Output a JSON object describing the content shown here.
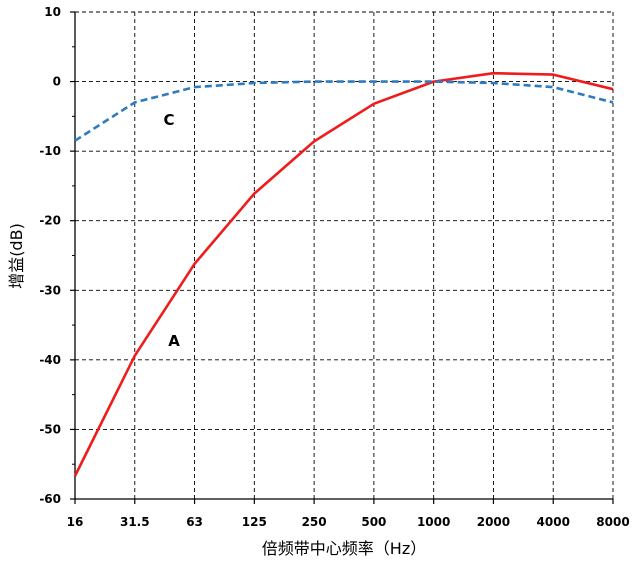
{
  "chart_data": {
    "type": "line",
    "xlabel": "倍频带中心频率（Hz）",
    "ylabel": "增益(dB)",
    "categories": [
      "16",
      "31.5",
      "63",
      "125",
      "250",
      "500",
      "1000",
      "2000",
      "4000",
      "8000"
    ],
    "ylim": [
      -60,
      10
    ],
    "yticks": [
      10,
      0,
      -10,
      -20,
      -30,
      -40,
      -50,
      -60
    ],
    "grid": true,
    "series": [
      {
        "name": "A",
        "color": "#ee1c1c",
        "dash": false,
        "values": [
          -56.7,
          -39.4,
          -26.2,
          -16.1,
          -8.6,
          -3.2,
          0.0,
          1.2,
          1.0,
          -1.1
        ]
      },
      {
        "name": "C",
        "color": "#2f7bbf",
        "dash": true,
        "values": [
          -8.5,
          -3.0,
          -0.8,
          -0.2,
          0.0,
          0.0,
          0.0,
          -0.2,
          -0.8,
          -3.0
        ]
      }
    ]
  }
}
